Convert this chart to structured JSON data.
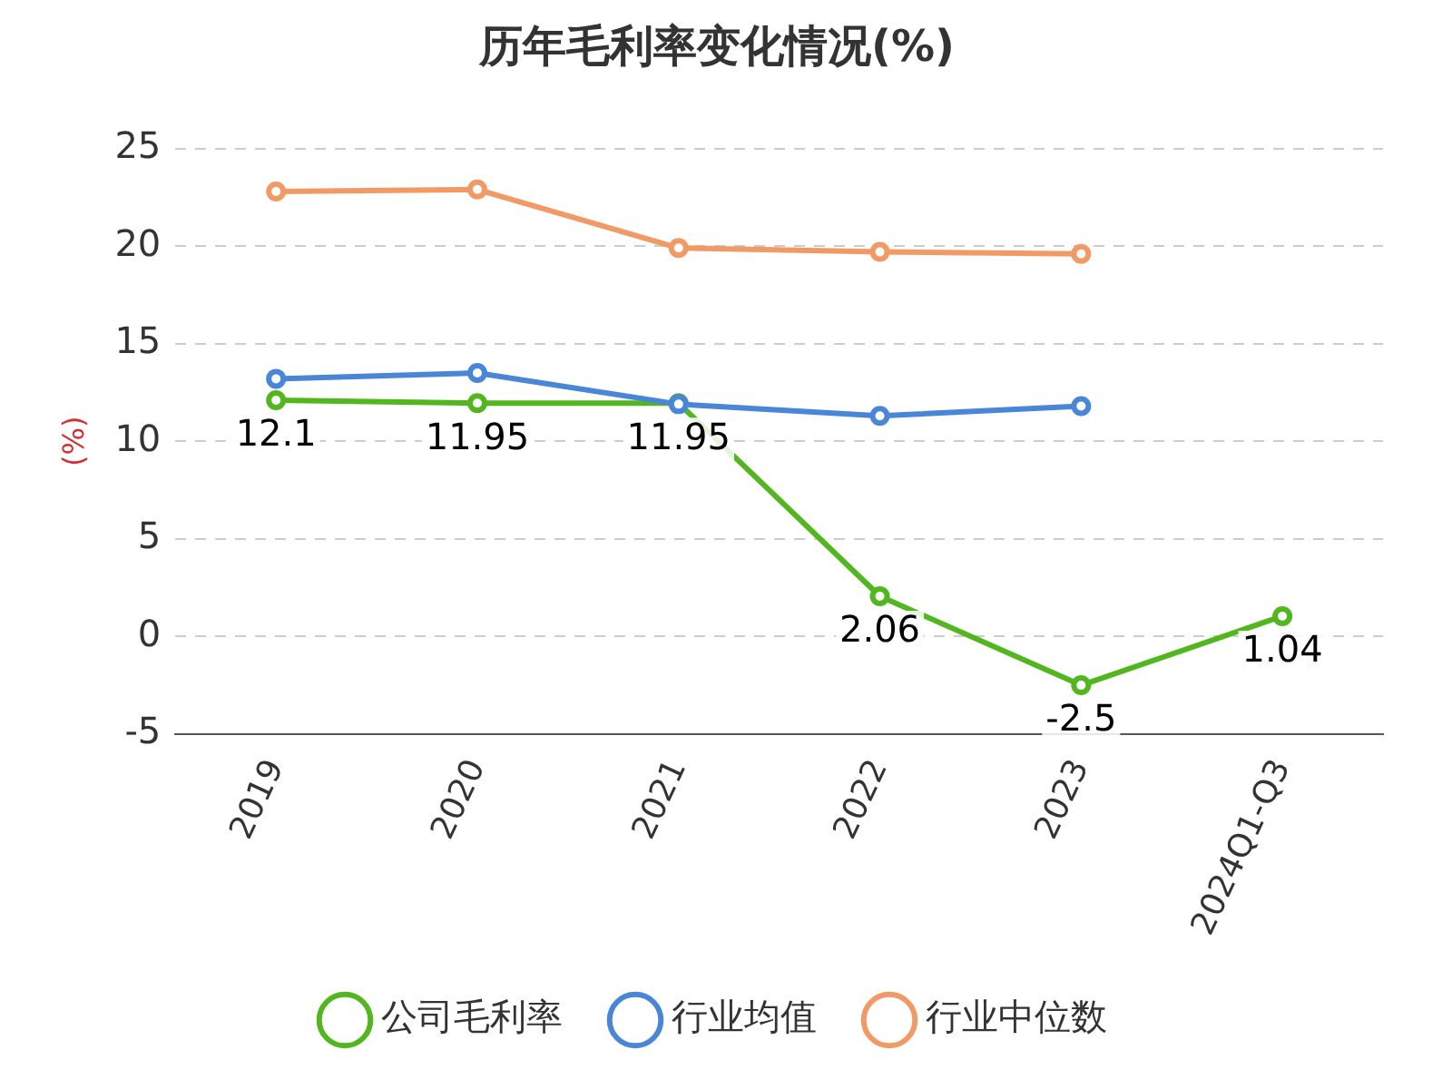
{
  "chart_data": {
    "type": "line",
    "title": "历年毛利率变化情况(%)",
    "ylabel": "(%)",
    "categories": [
      "2019",
      "2020",
      "2021",
      "2022",
      "2023",
      "2024Q1-Q3"
    ],
    "series": [
      {
        "name": "公司毛利率",
        "color": "#52b71f",
        "values": [
          12.1,
          11.95,
          11.95,
          2.06,
          -2.5,
          1.04
        ],
        "value_labels": [
          "12.1",
          "11.95",
          "11.95",
          "2.06",
          "-2.5",
          "1.04"
        ]
      },
      {
        "name": "行业均值",
        "color": "#4a86d8",
        "values": [
          13.2,
          13.5,
          11.9,
          11.3,
          11.8,
          null
        ]
      },
      {
        "name": "行业中位数",
        "color": "#f29a66",
        "values": [
          22.8,
          22.9,
          19.9,
          19.7,
          19.6,
          null
        ]
      }
    ],
    "ylim": [
      -5,
      25
    ],
    "yticks": [
      -5,
      0,
      5,
      10,
      15,
      20,
      25
    ],
    "grid": "y",
    "legend": "bottom",
    "marker": "circle",
    "line_style": "solid"
  }
}
